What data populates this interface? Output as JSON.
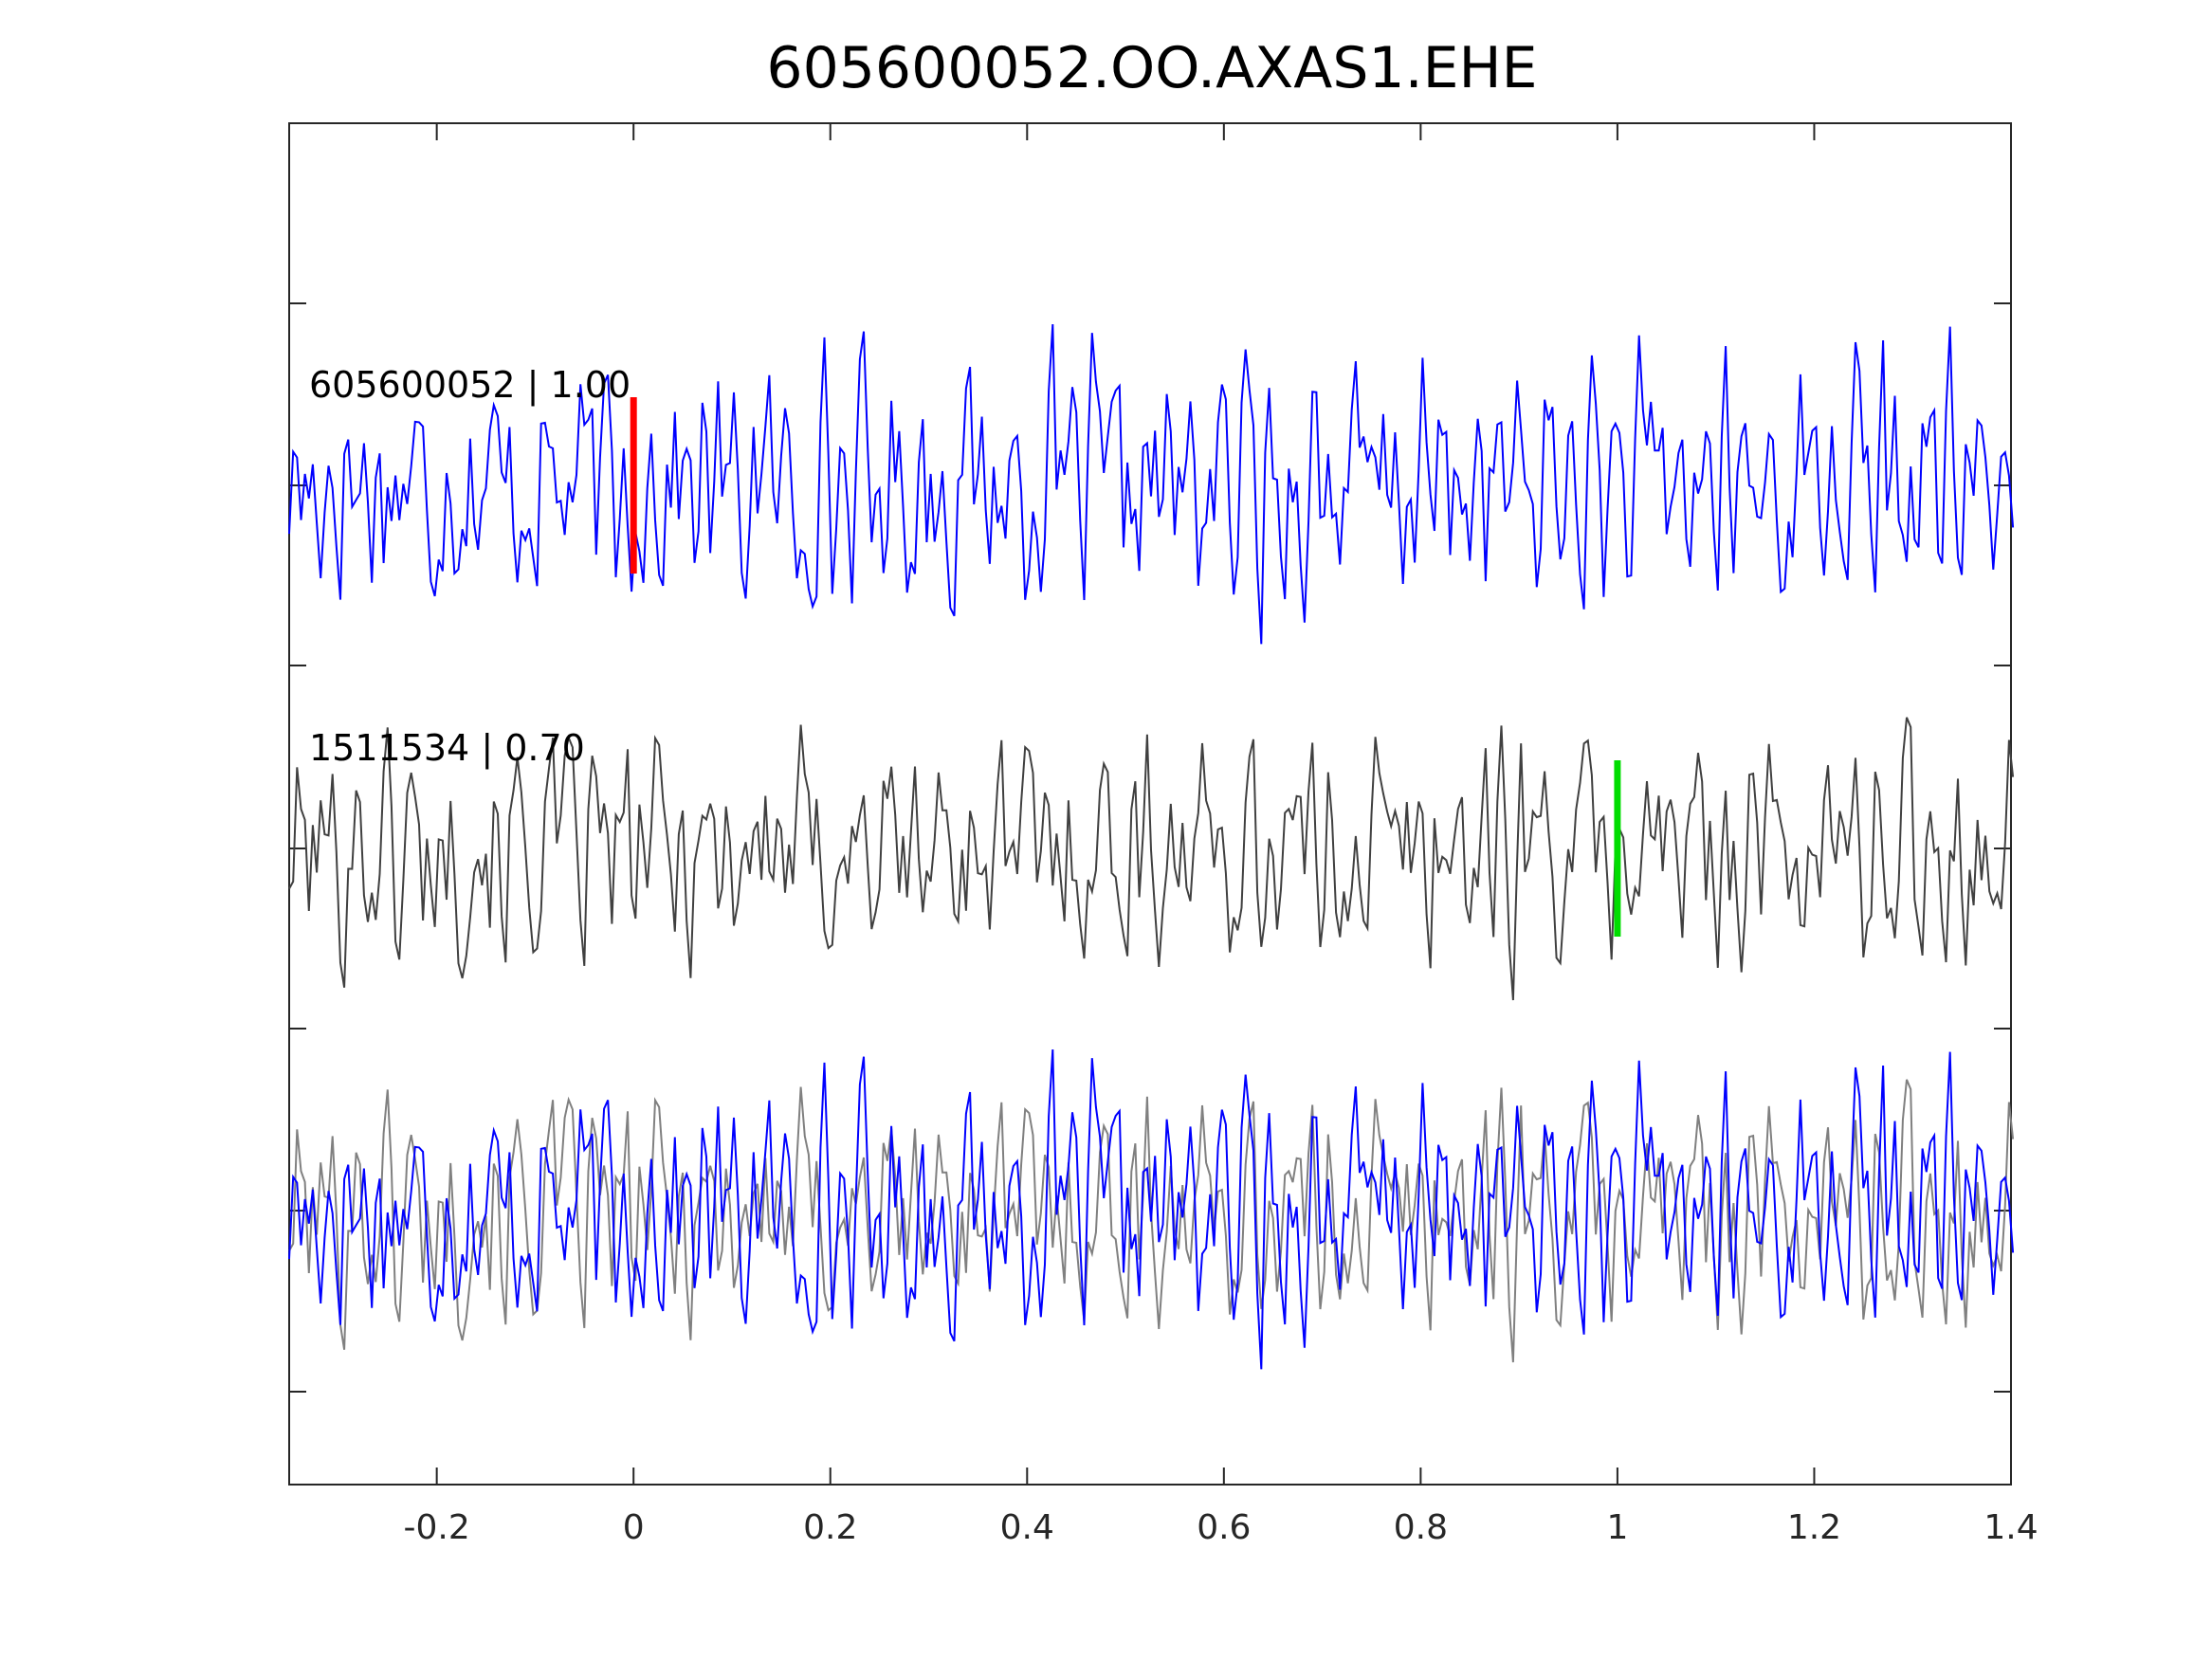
{
  "chart_data": {
    "type": "line",
    "title": "605600052.OO.AXAS1.EHE",
    "xlabel": "",
    "ylabel": "",
    "xlim": [
      -0.35,
      1.4
    ],
    "x_ticks": [
      -0.2,
      0,
      0.2,
      0.4,
      0.6,
      0.8,
      1,
      1.2,
      1.4
    ],
    "x_tick_labels": [
      "-0.2",
      "0",
      "0.2",
      "0.4",
      "0.6",
      "0.8",
      "1",
      "1.2",
      "1.4"
    ],
    "grid": false,
    "sample_interval": 0.004,
    "traces": [
      {
        "label": "605600052 | 1.00",
        "color": "#0000ff",
        "marker": {
          "x": 0.0,
          "color": "#ff0000"
        },
        "seed": 17
      },
      {
        "label": "1511534 | 0.70",
        "color": "#404040",
        "marker": {
          "x": 1.0,
          "color": "#00dd00"
        },
        "seed": 101
      }
    ],
    "overlay": {
      "series": [
        {
          "source": "605600052 | 1.00",
          "color": "#0000ff"
        },
        {
          "source": "1511534 | 0.70",
          "color": "#808080"
        }
      ]
    }
  }
}
